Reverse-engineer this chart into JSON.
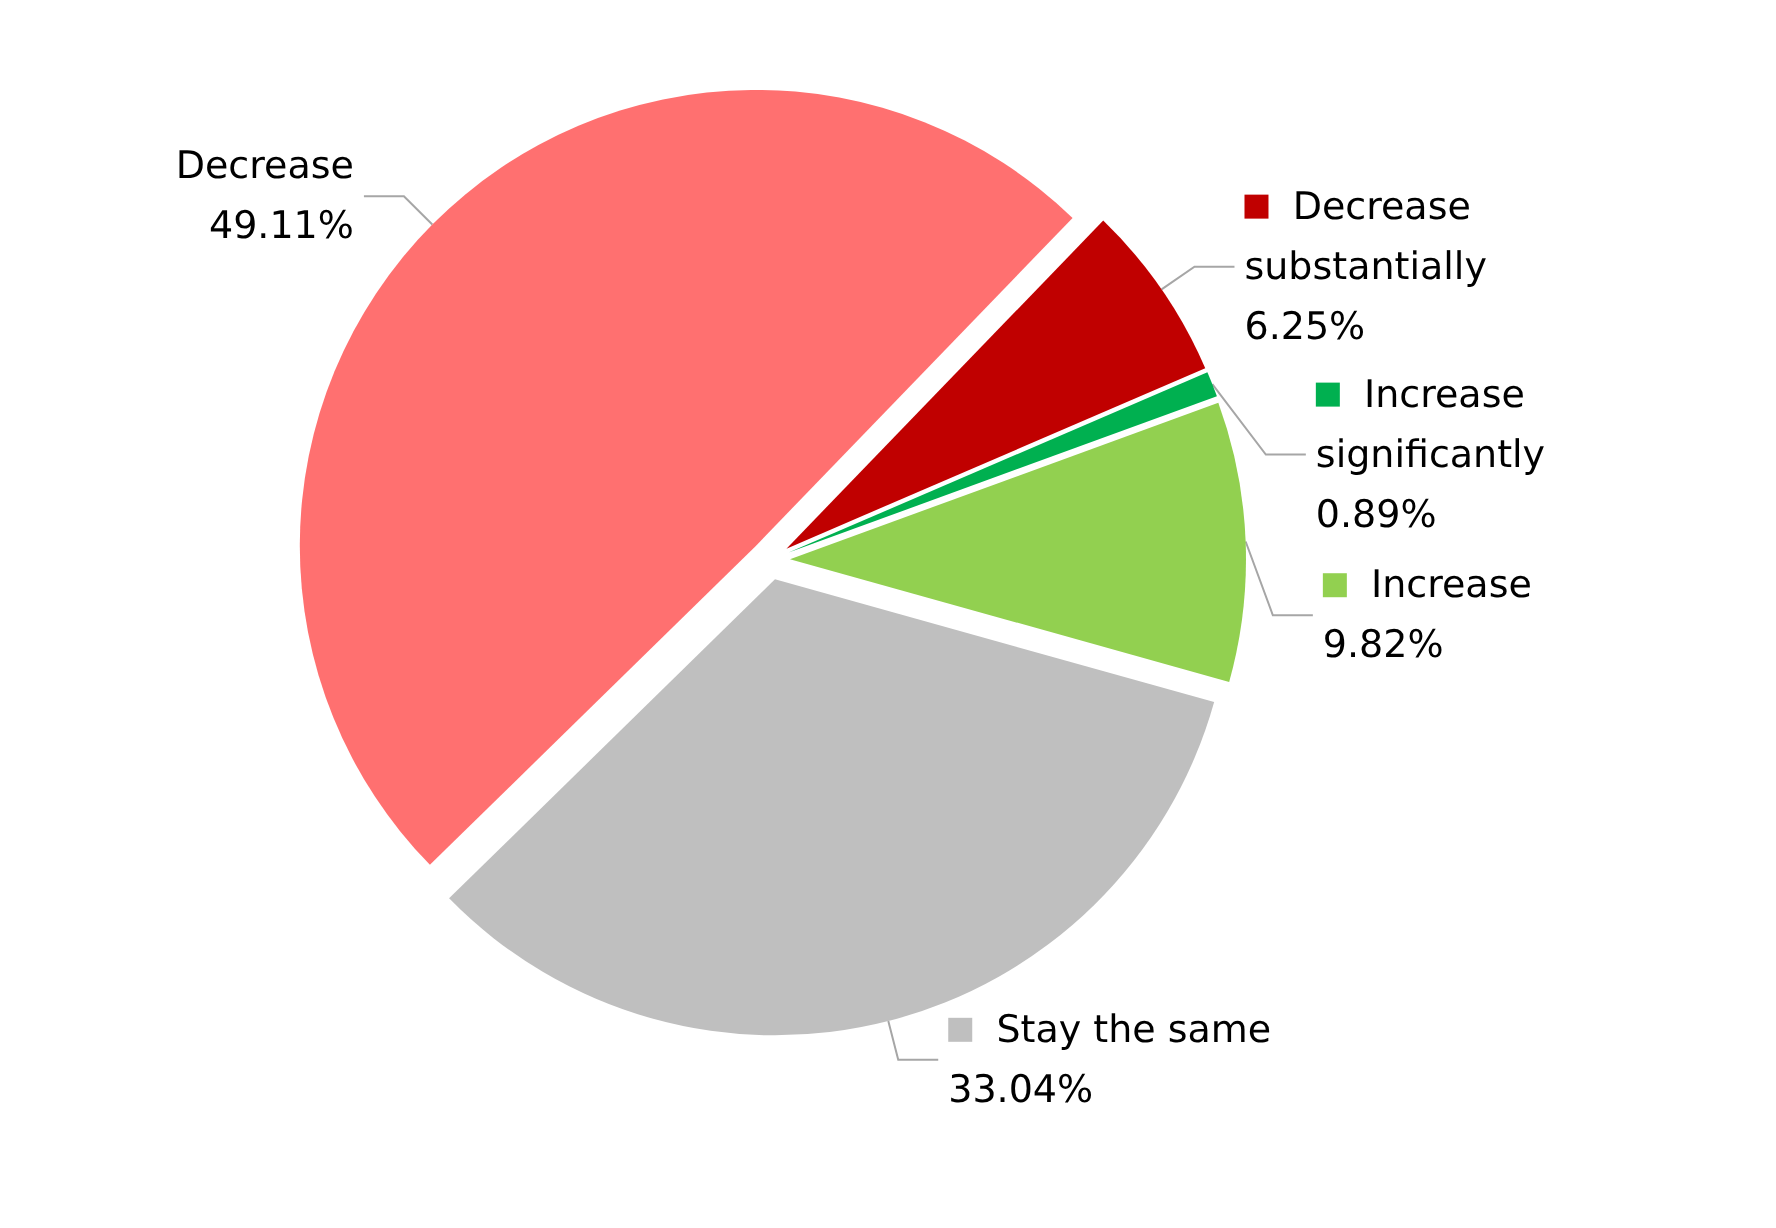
{
  "chart_data": {
    "type": "pie",
    "categories": [
      "Decrease substantially",
      "Increase significantly",
      "Increase",
      "Stay the same",
      "Decrease"
    ],
    "values": [
      6.25,
      0.89,
      9.82,
      33.04,
      49.11
    ],
    "colors": [
      "#c00000",
      "#00b050",
      "#92d050",
      "#bfbfbf",
      "#ff7070"
    ],
    "value_labels": [
      "6.25%",
      "0.89%",
      "9.82%",
      "33.04%",
      "49.11%"
    ],
    "legend": "right"
  }
}
